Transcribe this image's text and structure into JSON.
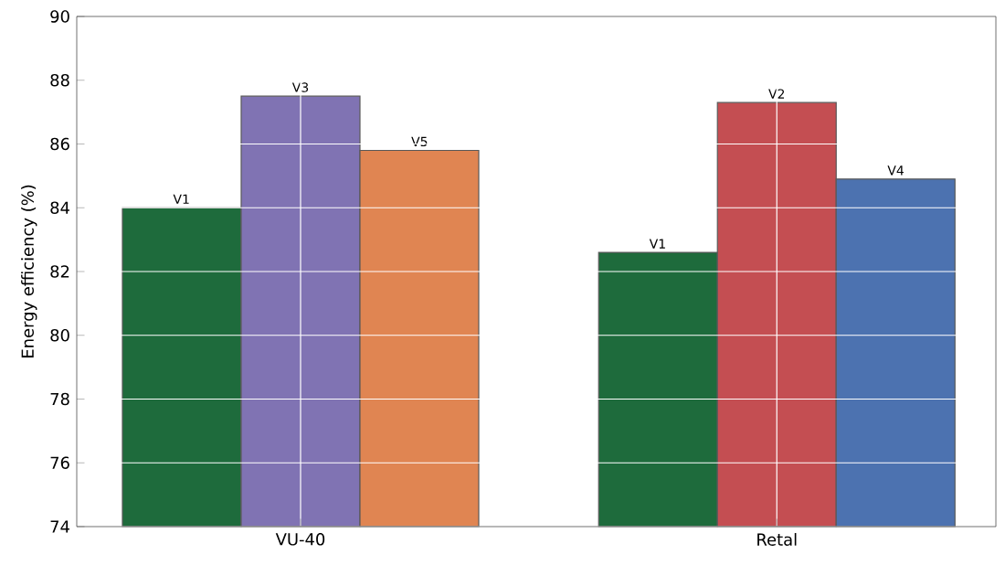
{
  "chart_data": {
    "type": "bar",
    "ylabel": "Energy efficiency (%)",
    "categories": [
      "VU-40",
      "Retal"
    ],
    "series": [
      {
        "colors": [
          "#1e6b3c",
          "#1e6b3c"
        ],
        "values": [
          84.0,
          82.6
        ],
        "value_labels": [
          "V1",
          "V1"
        ]
      },
      {
        "colors": [
          "#8073b3",
          "#c44e52"
        ],
        "values": [
          87.5,
          87.3
        ],
        "value_labels": [
          "V3",
          "V2"
        ]
      },
      {
        "colors": [
          "#e08552",
          "#4c72b0"
        ],
        "values": [
          85.8,
          84.9
        ],
        "value_labels": [
          "V5",
          "V4"
        ]
      }
    ],
    "ylim": [
      74,
      90
    ],
    "yticks": [
      74,
      76,
      78,
      80,
      82,
      84,
      86,
      88,
      90
    ],
    "grid": true
  }
}
